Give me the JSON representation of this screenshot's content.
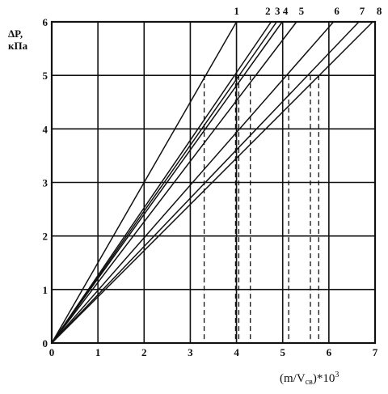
{
  "chart_data": {
    "type": "line",
    "ylabel": {
      "line1": "ΔP,",
      "line2": "кПа"
    },
    "xlabel": {
      "prefix": "(m/V",
      "sub": "св",
      "suffix": ")*10",
      "sup": "3"
    },
    "xlim": [
      0,
      7
    ],
    "ylim": [
      0,
      6
    ],
    "x_ticks": [
      0,
      1,
      2,
      3,
      4,
      5,
      6,
      7
    ],
    "y_ticks": [
      0,
      1,
      2,
      3,
      4,
      5,
      6
    ],
    "grid": true,
    "series": [
      {
        "name": "1",
        "x": [
          0,
          4.0
        ],
        "y": [
          0,
          6.0
        ]
      },
      {
        "name": "2",
        "x": [
          0,
          4.75
        ],
        "y": [
          0,
          6.0
        ]
      },
      {
        "name": "3",
        "x": [
          0,
          4.87
        ],
        "y": [
          0,
          6.0
        ]
      },
      {
        "name": "4",
        "x": [
          0,
          4.99
        ],
        "y": [
          0,
          6.0
        ]
      },
      {
        "name": "5",
        "x": [
          0,
          5.3
        ],
        "y": [
          0,
          6.0
        ]
      },
      {
        "name": "6",
        "x": [
          0,
          6.1
        ],
        "y": [
          0,
          6.0
        ]
      },
      {
        "name": "7",
        "x": [
          0,
          6.65
        ],
        "y": [
          0,
          6.0
        ]
      },
      {
        "name": "8",
        "x": [
          0,
          6.95
        ],
        "y": [
          0,
          6.0
        ]
      }
    ],
    "dashed_markers": {
      "y": 5,
      "x_values": [
        3.3,
        3.98,
        4.05,
        4.3,
        5.13,
        5.6,
        5.78
      ]
    }
  }
}
